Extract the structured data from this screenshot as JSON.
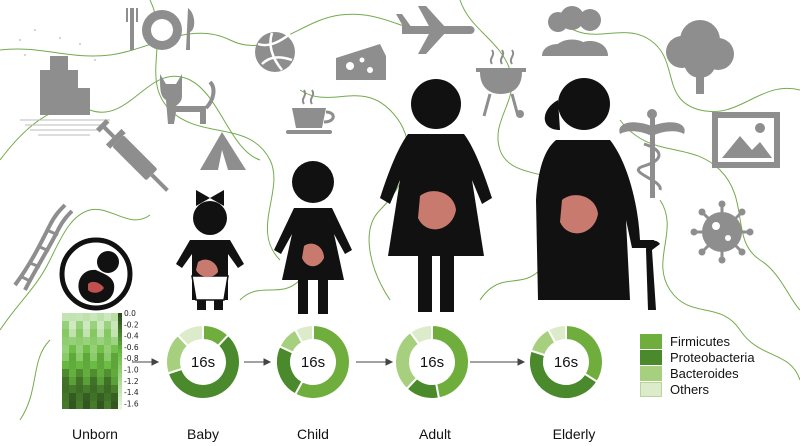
{
  "stages": [
    {
      "key": "unborn",
      "label": "Unborn"
    },
    {
      "key": "baby",
      "label": "Baby"
    },
    {
      "key": "child",
      "label": "Child"
    },
    {
      "key": "adult",
      "label": "Adult"
    },
    {
      "key": "elderly",
      "label": "Elderly"
    }
  ],
  "donut_center_label": "16s",
  "legend": [
    {
      "name": "Firmicutes",
      "color": "#6fae3d"
    },
    {
      "name": "Proteobacteria",
      "color": "#4a8a2c"
    },
    {
      "name": "Bacteroides",
      "color": "#a6cf7e"
    },
    {
      "name": "Others",
      "color": "#dcebc9"
    }
  ],
  "heatmap": {
    "ticks": [
      "0.0",
      "-0.2",
      "-0.4",
      "-0.6",
      "-0.8",
      "-1.0",
      "-1.2",
      "-1.4",
      "-1.6"
    ],
    "range": [
      -1.7,
      0.0
    ]
  },
  "chart_data": {
    "type": "pie",
    "categories": [
      "Firmicutes",
      "Proteobacteria",
      "Bacteroides",
      "Others"
    ],
    "series": [
      {
        "stage": "Baby",
        "values": [
          12,
          58,
          18,
          12
        ]
      },
      {
        "stage": "Child",
        "values": [
          58,
          24,
          10,
          8
        ]
      },
      {
        "stage": "Adult",
        "values": [
          47,
          15,
          28,
          10
        ]
      },
      {
        "stage": "Elderly",
        "values": [
          34,
          46,
          12,
          8
        ]
      }
    ]
  },
  "icons": [
    "dna-icon",
    "city-icon",
    "syringe-icon",
    "fork-plate-icon",
    "cat-icon",
    "tent-icon",
    "volleyball-icon",
    "coffee-cup-icon",
    "cheese-icon",
    "airplane-icon",
    "grill-icon",
    "people-icon",
    "tree-icon",
    "caduceus-icon",
    "picture-icon",
    "virus-icon",
    "fetus-icon"
  ]
}
